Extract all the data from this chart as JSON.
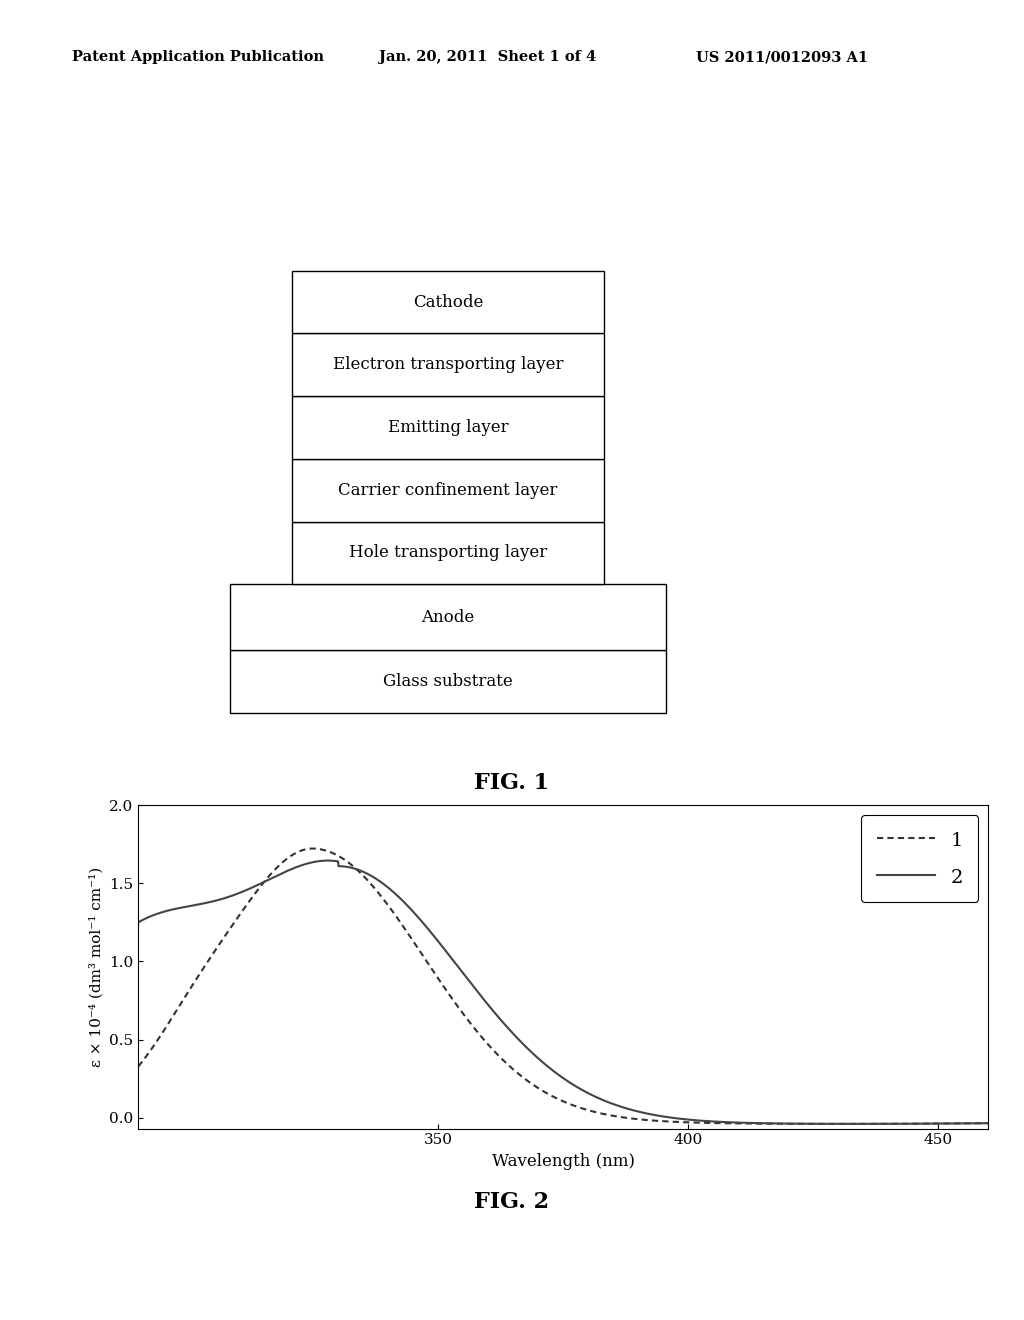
{
  "header_left": "Patent Application Publication",
  "header_mid": "Jan. 20, 2011  Sheet 1 of 4",
  "header_right": "US 2011/0012093 A1",
  "fig1_label": "FIG. 1",
  "fig2_label": "FIG. 2",
  "layers_top5": [
    "Cathode",
    "Electron transporting layer",
    "Emitting layer",
    "Carrier confinement layer",
    "Hole transporting layer"
  ],
  "layers_bottom2": [
    "Anode",
    "Glass substrate"
  ],
  "plot_xlim": [
    290,
    460
  ],
  "plot_ylim": [
    -0.07,
    2.0
  ],
  "plot_yticks": [
    0.0,
    0.5,
    1.0,
    1.5,
    2.0
  ],
  "plot_xticks": [
    350,
    400,
    450
  ],
  "ylabel": "ε × 10⁻⁴ (dm³ mol⁻¹ cm⁻¹)",
  "xlabel": "Wavelength (nm)",
  "background_color": "#ffffff",
  "line1_color": "#333333",
  "line2_color": "#444444"
}
